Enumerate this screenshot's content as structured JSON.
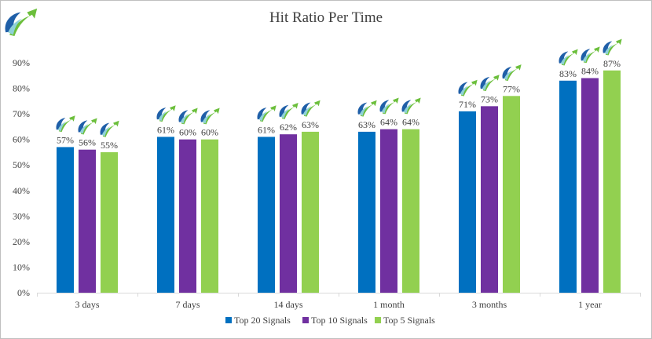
{
  "chart_data": {
    "type": "bar",
    "title": "Hit Ratio Per Time",
    "categories": [
      "3 days",
      "7 days",
      "14 days",
      "1 month",
      "3 months",
      "1 year"
    ],
    "series": [
      {
        "name": "Top 20 Signals",
        "color": "#0070c0",
        "values": [
          57,
          61,
          61,
          63,
          71,
          83
        ]
      },
      {
        "name": "Top 10 Signals",
        "color": "#7030a0",
        "values": [
          56,
          60,
          62,
          64,
          73,
          84
        ]
      },
      {
        "name": "Top 5 Signals",
        "color": "#92d050",
        "values": [
          55,
          60,
          63,
          64,
          77,
          87
        ]
      }
    ],
    "ylim": [
      0,
      90
    ],
    "yticks": [
      0,
      10,
      20,
      30,
      40,
      50,
      60,
      70,
      80,
      90
    ],
    "ytick_suffix": "%",
    "data_label_suffix": "%",
    "xlabel": "",
    "ylabel": "",
    "grid": false,
    "legend_position": "bottom",
    "marker_icon": "rising-arrow-logo-icon"
  }
}
